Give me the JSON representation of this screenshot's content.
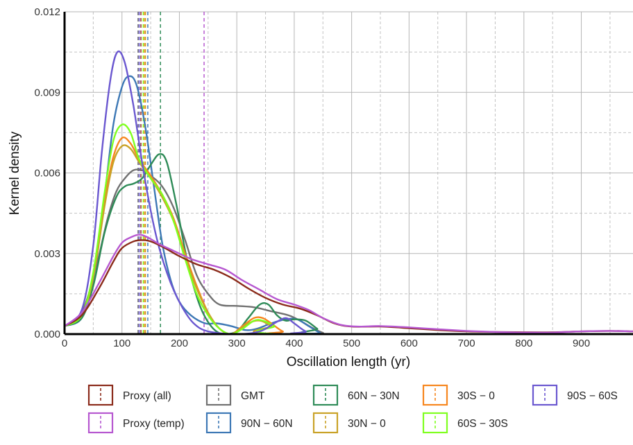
{
  "chart_data": {
    "type": "line",
    "xlabel": "Oscillation length (yr)",
    "ylabel": "Kernel density",
    "xlim": [
      0,
      990
    ],
    "ylim": [
      0,
      0.012
    ],
    "x_ticks": [
      0,
      100,
      200,
      300,
      400,
      500,
      600,
      700,
      800,
      900
    ],
    "x_tick_labels": [
      "0",
      "100",
      "200",
      "300",
      "400",
      "500",
      "600",
      "700",
      "800",
      "900"
    ],
    "y_ticks": [
      0,
      0.003,
      0.006,
      0.009,
      0.012
    ],
    "y_tick_labels": [
      "0.000",
      "0.003",
      "0.006",
      "0.009",
      "0.012"
    ],
    "grid": true,
    "legend_position": "bottom",
    "series": [
      {
        "name": "Proxy (all)",
        "color": "#8B2A1A",
        "mean": 133,
        "points": [
          [
            0,
            0.0003
          ],
          [
            30,
            0.0007
          ],
          [
            60,
            0.0017
          ],
          [
            85,
            0.0027
          ],
          [
            100,
            0.0032
          ],
          [
            120,
            0.00345
          ],
          [
            135,
            0.0035
          ],
          [
            150,
            0.00345
          ],
          [
            175,
            0.0032
          ],
          [
            200,
            0.0029
          ],
          [
            230,
            0.0026
          ],
          [
            260,
            0.0024
          ],
          [
            290,
            0.0021
          ],
          [
            320,
            0.0017
          ],
          [
            350,
            0.00135
          ],
          [
            380,
            0.0011
          ],
          [
            410,
            0.00095
          ],
          [
            440,
            0.0007
          ],
          [
            470,
            0.0004
          ],
          [
            500,
            0.00028
          ],
          [
            550,
            0.00028
          ],
          [
            600,
            0.00022
          ],
          [
            650,
            0.00015
          ],
          [
            700,
            0.0001
          ],
          [
            750,
            8e-05
          ],
          [
            800,
            7e-05
          ],
          [
            850,
            7e-05
          ],
          [
            900,
            0.0001
          ],
          [
            950,
            0.00012
          ],
          [
            990,
            0.0001
          ]
        ]
      },
      {
        "name": "Proxy (temp)",
        "color": "#B657D0",
        "mean": 243,
        "points": [
          [
            0,
            0.0003
          ],
          [
            30,
            0.0008
          ],
          [
            60,
            0.0019
          ],
          [
            85,
            0.0029
          ],
          [
            100,
            0.0034
          ],
          [
            115,
            0.0036
          ],
          [
            130,
            0.0037
          ],
          [
            145,
            0.0036
          ],
          [
            165,
            0.00335
          ],
          [
            190,
            0.0031
          ],
          [
            220,
            0.0028
          ],
          [
            250,
            0.0026
          ],
          [
            280,
            0.0024
          ],
          [
            310,
            0.002
          ],
          [
            340,
            0.00165
          ],
          [
            370,
            0.0013
          ],
          [
            400,
            0.0011
          ],
          [
            425,
            0.0009
          ],
          [
            450,
            0.0006
          ],
          [
            480,
            0.00035
          ],
          [
            510,
            0.00028
          ],
          [
            550,
            0.0003
          ],
          [
            600,
            0.00025
          ],
          [
            650,
            0.00018
          ],
          [
            700,
            0.00012
          ],
          [
            750,
            8e-05
          ],
          [
            800,
            6e-05
          ],
          [
            850,
            6e-05
          ],
          [
            900,
            0.0001
          ],
          [
            950,
            0.00012
          ],
          [
            990,
            0.0001
          ]
        ]
      },
      {
        "name": "GMT",
        "color": "#707070",
        "mean": 128,
        "points": [
          [
            0,
            0.0003
          ],
          [
            30,
            0.0008
          ],
          [
            55,
            0.0025
          ],
          [
            75,
            0.0043
          ],
          [
            90,
            0.0053
          ],
          [
            105,
            0.0058
          ],
          [
            120,
            0.0061
          ],
          [
            135,
            0.0061
          ],
          [
            150,
            0.0059
          ],
          [
            170,
            0.0055
          ],
          [
            190,
            0.0047
          ],
          [
            210,
            0.0035
          ],
          [
            230,
            0.0022
          ],
          [
            250,
            0.0015
          ],
          [
            270,
            0.0011
          ],
          [
            300,
            0.00105
          ],
          [
            330,
            0.001
          ],
          [
            360,
            0.00085
          ],
          [
            390,
            0.0007
          ],
          [
            410,
            0.0005
          ],
          [
            430,
            0.00025
          ],
          [
            450,
            5e-05
          ],
          [
            470,
            0
          ],
          [
            990,
            0
          ]
        ]
      },
      {
        "name": "90N − 60N",
        "color": "#3D78B5",
        "mean": 145,
        "points": [
          [
            0,
            0.0003
          ],
          [
            30,
            0.0006
          ],
          [
            50,
            0.002
          ],
          [
            70,
            0.0052
          ],
          [
            85,
            0.0078
          ],
          [
            100,
            0.0092
          ],
          [
            112,
            0.0096
          ],
          [
            125,
            0.0093
          ],
          [
            140,
            0.0078
          ],
          [
            155,
            0.0056
          ],
          [
            170,
            0.0034
          ],
          [
            185,
            0.002
          ],
          [
            200,
            0.0012
          ],
          [
            220,
            0.0007
          ],
          [
            245,
            0.0004
          ],
          [
            265,
            0.0004
          ],
          [
            290,
            0.0003
          ],
          [
            315,
            0.00015
          ],
          [
            335,
            0.0002
          ],
          [
            360,
            0.0004
          ],
          [
            385,
            0.00055
          ],
          [
            405,
            0.00055
          ],
          [
            425,
            0.0003
          ],
          [
            445,
            5e-05
          ],
          [
            460,
            0
          ],
          [
            990,
            0
          ]
        ]
      },
      {
        "name": "60N − 30N",
        "color": "#2E8B57",
        "mean": 167,
        "points": [
          [
            0,
            0.0003
          ],
          [
            30,
            0.0006
          ],
          [
            50,
            0.0018
          ],
          [
            70,
            0.0038
          ],
          [
            90,
            0.0051
          ],
          [
            105,
            0.0055
          ],
          [
            120,
            0.0056
          ],
          [
            135,
            0.0058
          ],
          [
            150,
            0.0063
          ],
          [
            165,
            0.0067
          ],
          [
            178,
            0.0064
          ],
          [
            195,
            0.0048
          ],
          [
            215,
            0.0026
          ],
          [
            235,
            0.0011
          ],
          [
            255,
            0.0003
          ],
          [
            275,
            0
          ],
          [
            300,
            0.0001
          ],
          [
            320,
            0.0006
          ],
          [
            340,
            0.0011
          ],
          [
            355,
            0.0011
          ],
          [
            370,
            0.0007
          ],
          [
            385,
            0.0005
          ],
          [
            400,
            0.00055
          ],
          [
            420,
            0.0005
          ],
          [
            440,
            0.0002
          ],
          [
            455,
            0
          ],
          [
            990,
            0
          ]
        ]
      },
      {
        "name": "30S − 0",
        "color": "#F7861E",
        "mean": 139,
        "points": [
          [
            0,
            0.0003
          ],
          [
            30,
            0.0007
          ],
          [
            50,
            0.0022
          ],
          [
            70,
            0.005
          ],
          [
            85,
            0.0066
          ],
          [
            100,
            0.0073
          ],
          [
            115,
            0.0071
          ],
          [
            130,
            0.0065
          ],
          [
            150,
            0.0059
          ],
          [
            170,
            0.0052
          ],
          [
            190,
            0.0043
          ],
          [
            210,
            0.003
          ],
          [
            230,
            0.0018
          ],
          [
            250,
            0.0008
          ],
          [
            270,
            0.0002
          ],
          [
            290,
            0
          ],
          [
            310,
            0.0003
          ],
          [
            330,
            0.0006
          ],
          [
            345,
            0.0006
          ],
          [
            360,
            0.0004
          ],
          [
            380,
            0.0001
          ],
          [
            400,
            0
          ],
          [
            990,
            0
          ]
        ]
      },
      {
        "name": "30N − 0",
        "color": "#C9A227",
        "mean": 141,
        "points": [
          [
            0,
            0.0003
          ],
          [
            30,
            0.0007
          ],
          [
            50,
            0.0021
          ],
          [
            70,
            0.0048
          ],
          [
            85,
            0.0064
          ],
          [
            100,
            0.007
          ],
          [
            115,
            0.0069
          ],
          [
            130,
            0.0064
          ],
          [
            150,
            0.0058
          ],
          [
            170,
            0.0051
          ],
          [
            190,
            0.0042
          ],
          [
            210,
            0.0029
          ],
          [
            230,
            0.0017
          ],
          [
            250,
            0.0008
          ],
          [
            270,
            0.0002
          ],
          [
            290,
            0
          ],
          [
            320,
            0.0004
          ],
          [
            340,
            0.0005
          ],
          [
            360,
            0.0003
          ],
          [
            380,
            0
          ],
          [
            990,
            0
          ]
        ]
      },
      {
        "name": "60S − 30S",
        "color": "#7FFF1F",
        "mean": 137,
        "points": [
          [
            0,
            0.0003
          ],
          [
            30,
            0.0007
          ],
          [
            50,
            0.0023
          ],
          [
            70,
            0.0053
          ],
          [
            85,
            0.0072
          ],
          [
            100,
            0.0078
          ],
          [
            115,
            0.0075
          ],
          [
            130,
            0.0065
          ],
          [
            150,
            0.0058
          ],
          [
            170,
            0.0052
          ],
          [
            190,
            0.0042
          ],
          [
            210,
            0.0028
          ],
          [
            230,
            0.0015
          ],
          [
            250,
            0.0007
          ],
          [
            270,
            0.0002
          ],
          [
            290,
            0
          ],
          [
            310,
            0.0002
          ],
          [
            330,
            0.0005
          ],
          [
            345,
            0.0005
          ],
          [
            365,
            0.0003
          ],
          [
            385,
            0
          ],
          [
            990,
            0
          ]
        ]
      },
      {
        "name": "90S − 60S",
        "color": "#6A57D0",
        "mean": 130,
        "points": [
          [
            0,
            0.0003
          ],
          [
            30,
            0.0009
          ],
          [
            50,
            0.0033
          ],
          [
            65,
            0.0068
          ],
          [
            80,
            0.0095
          ],
          [
            92,
            0.0105
          ],
          [
            105,
            0.0101
          ],
          [
            120,
            0.0085
          ],
          [
            135,
            0.0064
          ],
          [
            150,
            0.0046
          ],
          [
            165,
            0.0032
          ],
          [
            185,
            0.0019
          ],
          [
            205,
            0.001
          ],
          [
            225,
            0.0004
          ],
          [
            250,
            0.0001
          ],
          [
            300,
            0
          ],
          [
            340,
            0.0001
          ],
          [
            365,
            0.0004
          ],
          [
            385,
            0.0006
          ],
          [
            400,
            0.0004
          ],
          [
            420,
            0.0001
          ],
          [
            440,
            0
          ],
          [
            990,
            0
          ]
        ]
      }
    ]
  },
  "legend": {
    "items": [
      {
        "label": "Proxy (all)",
        "color": "#8B2A1A"
      },
      {
        "label": "Proxy (temp)",
        "color": "#B657D0"
      },
      {
        "label": "GMT",
        "color": "#707070"
      },
      {
        "label": "90N − 60N",
        "color": "#3D78B5"
      },
      {
        "label": "60N − 30N",
        "color": "#2E8B57"
      },
      {
        "label": "30N − 0",
        "color": "#C9A227"
      },
      {
        "label": "30S − 0",
        "color": "#F7861E"
      },
      {
        "label": "60S − 30S",
        "color": "#7FFF1F"
      },
      {
        "label": "90S − 60S",
        "color": "#6A57D0"
      }
    ]
  }
}
